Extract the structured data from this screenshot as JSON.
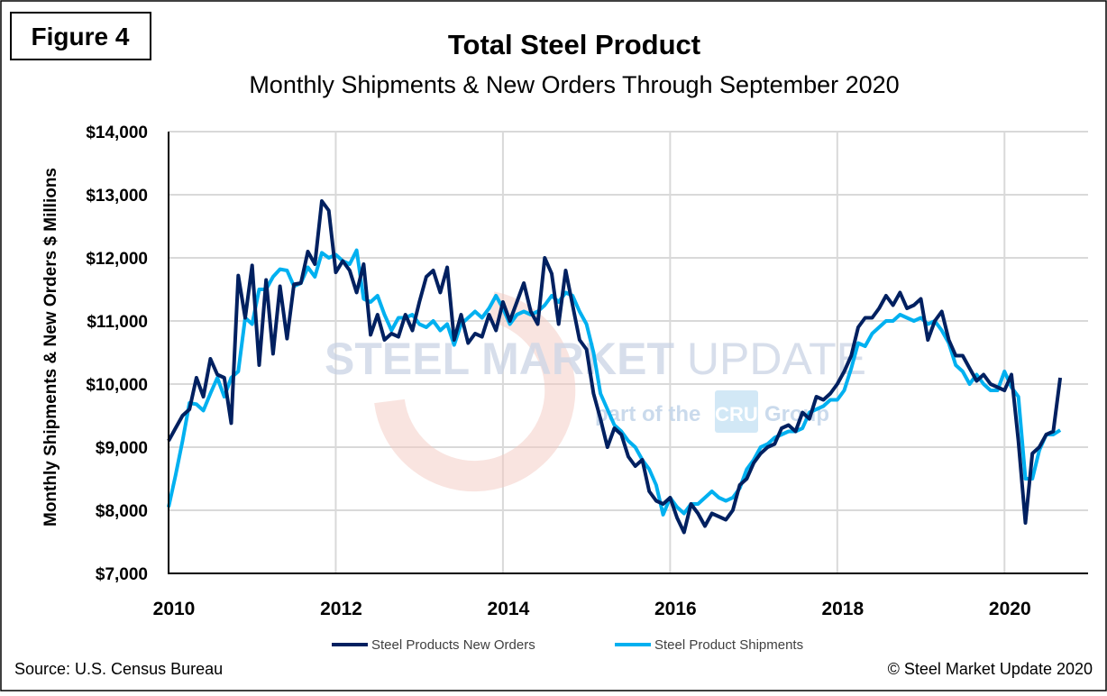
{
  "figure_label": "Figure 4",
  "source": "Source: U.S. Census Bureau",
  "copyright": "© Steel Market Update 2020",
  "watermark": {
    "main_bold": "STEEL MARKET",
    "main_light": "UPDATE",
    "sub_left": "part of the",
    "sub_logo": "CRU",
    "sub_right": "Group"
  },
  "chart_data": {
    "type": "line",
    "title": "Total Steel Product",
    "subtitle": "Monthly Shipments & New Orders Through September 2020",
    "xlabel": "",
    "ylabel": "Monthly Shipments & New Orders $ Millions",
    "x_start": "2010-01",
    "x_end": "2020-09",
    "x_frequency": "monthly",
    "xlim": [
      2010,
      2021
    ],
    "x_ticks": [
      "2010",
      "2012",
      "2014",
      "2016",
      "2018",
      "2020"
    ],
    "ylim": [
      7000,
      14000
    ],
    "y_ticks": [
      "$7,000",
      "$8,000",
      "$9,000",
      "$10,000",
      "$11,000",
      "$12,000",
      "$13,000",
      "$14,000"
    ],
    "grid": true,
    "legend_position": "bottom",
    "series": [
      {
        "name": "Steel Products New Orders",
        "color": "#002060",
        "values": [
          9100,
          9300,
          9500,
          9600,
          10100,
          9800,
          10400,
          10150,
          10100,
          9380,
          11720,
          11050,
          11880,
          10300,
          11650,
          10480,
          11550,
          10720,
          11580,
          11600,
          12100,
          11900,
          12900,
          12750,
          11770,
          11950,
          11800,
          11450,
          11900,
          10780,
          11100,
          10700,
          10800,
          10750,
          11100,
          10850,
          11300,
          11700,
          11800,
          11450,
          11850,
          10700,
          11100,
          10650,
          10800,
          10750,
          11100,
          10850,
          11300,
          11000,
          11300,
          11600,
          11150,
          10950,
          12000,
          11750,
          10950,
          11800,
          11250,
          10700,
          10550,
          9850,
          9450,
          9000,
          9300,
          9200,
          8850,
          8700,
          8800,
          8300,
          8150,
          8100,
          8200,
          7880,
          7650,
          8100,
          7950,
          7750,
          7950,
          7900,
          7850,
          8000,
          8400,
          8500,
          8750,
          8900,
          9000,
          9050,
          9300,
          9350,
          9250,
          9550,
          9450,
          9800,
          9750,
          9850,
          10000,
          10200,
          10450,
          10900,
          11050,
          11050,
          11200,
          11400,
          11250,
          11450,
          11200,
          11250,
          11350,
          10700,
          11000,
          11150,
          10700,
          10450,
          10450,
          10250,
          10050,
          10150,
          10000,
          9950,
          9900,
          10150,
          9100,
          7800,
          8900,
          9000,
          9200,
          9250,
          10100
        ]
      },
      {
        "name": "Steel Product Shipments",
        "color": "#00B0F0",
        "values": [
          8050,
          8550,
          9100,
          9700,
          9680,
          9580,
          9850,
          10100,
          9800,
          10100,
          10200,
          11050,
          10950,
          11500,
          11500,
          11700,
          11820,
          11800,
          11550,
          11600,
          11850,
          11700,
          12080,
          12000,
          12050,
          11950,
          11900,
          12120,
          11350,
          11300,
          11400,
          11100,
          10850,
          11050,
          11050,
          11100,
          10950,
          10900,
          11000,
          10850,
          10950,
          10620,
          10950,
          11050,
          11150,
          11050,
          11200,
          11400,
          11200,
          10950,
          11100,
          11150,
          11100,
          11150,
          11250,
          11400,
          11300,
          11450,
          11400,
          11150,
          10950,
          10500,
          9850,
          9600,
          9350,
          9250,
          9100,
          9000,
          8800,
          8650,
          8400,
          7930,
          8200,
          8050,
          7950,
          8100,
          8100,
          8200,
          8300,
          8200,
          8150,
          8200,
          8350,
          8650,
          8800,
          9000,
          9050,
          9150,
          9200,
          9250,
          9250,
          9300,
          9550,
          9600,
          9650,
          9750,
          9750,
          9900,
          10250,
          10650,
          10600,
          10800,
          10900,
          11000,
          11000,
          11100,
          11050,
          11000,
          11050,
          10950,
          11000,
          10850,
          10650,
          10300,
          10200,
          10000,
          10150,
          10000,
          9900,
          9900,
          10200,
          9950,
          9800,
          8500,
          8500,
          8950,
          9200,
          9200,
          9270
        ]
      }
    ]
  }
}
